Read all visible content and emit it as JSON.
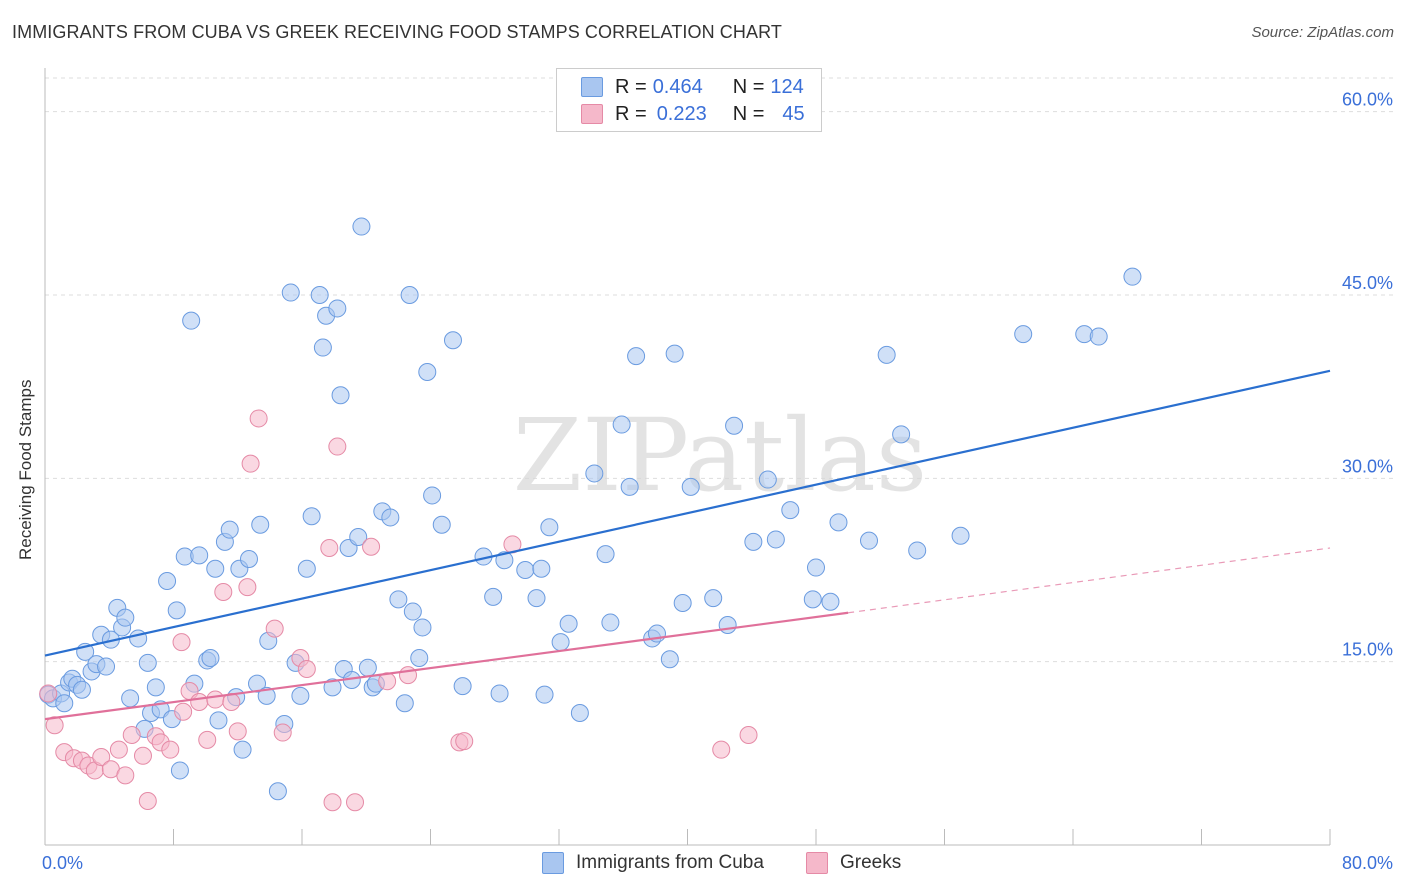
{
  "title": "IMMIGRANTS FROM CUBA VS GREEK RECEIVING FOOD STAMPS CORRELATION CHART",
  "source": "Source: ZipAtlas.com",
  "watermark": "ZIPatlas",
  "legend": {
    "rows": [
      {
        "r_label": "R =",
        "r_value": "0.464",
        "n_label": "N =",
        "n_value": "124",
        "color": "#a9c6f0"
      },
      {
        "r_label": "R =",
        "r_value": "0.223",
        "n_label": "N =",
        "n_value": "45",
        "color": "#f5b8ca"
      }
    ]
  },
  "bottom_legend": [
    {
      "label": "Immigrants from Cuba",
      "color": "#a9c6f0"
    },
    {
      "label": "Greeks",
      "color": "#f5b8ca"
    }
  ],
  "chart_data": {
    "type": "scatter",
    "title": "IMMIGRANTS FROM CUBA VS GREEK RECEIVING FOOD STAMPS CORRELATION CHART",
    "xlabel": "",
    "ylabel": "Receiving Food Stamps",
    "xlim": [
      0,
      80
    ],
    "ylim": [
      0,
      63
    ],
    "x_tick_labels": [
      "0.0%",
      "80.0%"
    ],
    "y_ticks": [
      15,
      30,
      45,
      60
    ],
    "y_tick_labels": [
      "15.0%",
      "30.0%",
      "45.0%",
      "60.0%"
    ],
    "grid": "horizontal dashed",
    "legend_position": "top-center",
    "series": [
      {
        "name": "Immigrants from Cuba",
        "color": "#a9c6f0",
        "stroke": "#6a9be0",
        "trend_color": "#2a6fcf",
        "trend": {
          "x0": 0,
          "y0": 15.5,
          "x1": 80,
          "y1": 38.8
        },
        "points": [
          [
            0.2,
            12.3
          ],
          [
            0.5,
            12
          ],
          [
            1,
            12.4
          ],
          [
            1.2,
            11.6
          ],
          [
            1.5,
            13.3
          ],
          [
            1.7,
            13.6
          ],
          [
            2,
            13.1
          ],
          [
            2.3,
            12.7
          ],
          [
            2.5,
            15.8
          ],
          [
            2.9,
            14.2
          ],
          [
            3.2,
            14.8
          ],
          [
            3.5,
            17.2
          ],
          [
            3.8,
            14.6
          ],
          [
            4.1,
            16.8
          ],
          [
            4.5,
            19.4
          ],
          [
            4.8,
            17.8
          ],
          [
            5,
            18.6
          ],
          [
            5.3,
            12
          ],
          [
            5.8,
            16.9
          ],
          [
            6.2,
            9.5
          ],
          [
            6.4,
            14.9
          ],
          [
            6.6,
            10.8
          ],
          [
            6.9,
            12.9
          ],
          [
            7.2,
            11.1
          ],
          [
            7.6,
            21.6
          ],
          [
            7.9,
            10.3
          ],
          [
            8.2,
            19.2
          ],
          [
            8.4,
            6.1
          ],
          [
            8.7,
            23.6
          ],
          [
            9.1,
            42.9
          ],
          [
            9.3,
            13.2
          ],
          [
            9.6,
            23.7
          ],
          [
            10.1,
            15.1
          ],
          [
            10.3,
            15.3
          ],
          [
            10.6,
            22.6
          ],
          [
            10.8,
            10.2
          ],
          [
            11.2,
            24.8
          ],
          [
            11.5,
            25.8
          ],
          [
            11.9,
            12.1
          ],
          [
            12.1,
            22.6
          ],
          [
            12.3,
            7.8
          ],
          [
            12.7,
            23.4
          ],
          [
            13.2,
            13.2
          ],
          [
            13.4,
            26.2
          ],
          [
            13.8,
            12.2
          ],
          [
            13.9,
            16.7
          ],
          [
            14.5,
            4.4
          ],
          [
            14.9,
            9.9
          ],
          [
            15.3,
            45.2
          ],
          [
            15.6,
            14.9
          ],
          [
            15.9,
            12.2
          ],
          [
            16.3,
            22.6
          ],
          [
            16.6,
            26.9
          ],
          [
            17.1,
            45
          ],
          [
            17.3,
            40.7
          ],
          [
            17.5,
            43.3
          ],
          [
            17.9,
            12.9
          ],
          [
            18.2,
            43.9
          ],
          [
            18.4,
            36.8
          ],
          [
            18.6,
            14.4
          ],
          [
            18.9,
            24.3
          ],
          [
            19.1,
            13.5
          ],
          [
            19.5,
            25.2
          ],
          [
            19.7,
            50.6
          ],
          [
            20.1,
            14.5
          ],
          [
            20.4,
            12.9
          ],
          [
            20.6,
            13.2
          ],
          [
            21,
            27.3
          ],
          [
            21.5,
            26.8
          ],
          [
            22,
            20.1
          ],
          [
            22.4,
            11.6
          ],
          [
            22.7,
            45
          ],
          [
            22.9,
            19.1
          ],
          [
            23.3,
            15.3
          ],
          [
            23.5,
            17.8
          ],
          [
            23.8,
            38.7
          ],
          [
            24.1,
            28.6
          ],
          [
            24.7,
            26.2
          ],
          [
            25.4,
            41.3
          ],
          [
            26,
            13
          ],
          [
            27.3,
            23.6
          ],
          [
            27.9,
            20.3
          ],
          [
            28.3,
            12.4
          ],
          [
            28.6,
            23.3
          ],
          [
            29.9,
            22.5
          ],
          [
            30.6,
            20.2
          ],
          [
            30.9,
            22.6
          ],
          [
            31.1,
            12.3
          ],
          [
            31.4,
            26
          ],
          [
            32.1,
            16.6
          ],
          [
            32.6,
            18.1
          ],
          [
            33.3,
            10.8
          ],
          [
            34.2,
            30.4
          ],
          [
            34.9,
            23.8
          ],
          [
            35.2,
            18.2
          ],
          [
            35.9,
            34.4
          ],
          [
            36.4,
            29.3
          ],
          [
            36.8,
            40
          ],
          [
            37.8,
            16.9
          ],
          [
            38.1,
            17.3
          ],
          [
            38.9,
            15.2
          ],
          [
            39.2,
            40.2
          ],
          [
            39.7,
            19.8
          ],
          [
            40.2,
            29.3
          ],
          [
            41.6,
            20.2
          ],
          [
            42.5,
            18
          ],
          [
            42.9,
            34.3
          ],
          [
            44.1,
            24.8
          ],
          [
            45,
            29.9
          ],
          [
            45.5,
            25
          ],
          [
            46.4,
            27.4
          ],
          [
            47.8,
            20.1
          ],
          [
            48,
            22.7
          ],
          [
            48.9,
            19.9
          ],
          [
            49.4,
            26.4
          ],
          [
            51.3,
            24.9
          ],
          [
            52.4,
            40.1
          ],
          [
            53.3,
            33.6
          ],
          [
            54.3,
            24.1
          ],
          [
            57,
            25.3
          ],
          [
            60.9,
            41.8
          ],
          [
            64.7,
            41.8
          ],
          [
            65.6,
            41.6
          ],
          [
            67.7,
            46.5
          ]
        ]
      },
      {
        "name": "Greeks",
        "color": "#f5b8ca",
        "stroke": "#e58aa6",
        "trend_color": "#e0709a",
        "trend": {
          "x0": 0,
          "y0": 10.3,
          "x1": 50,
          "y1": 19
        },
        "trend_dashed": {
          "x0": 50,
          "y0": 19,
          "x1": 80,
          "y1": 24.3
        },
        "points": [
          [
            0.2,
            12.4
          ],
          [
            0.6,
            9.8
          ],
          [
            1.2,
            7.6
          ],
          [
            1.8,
            7.1
          ],
          [
            2.3,
            6.9
          ],
          [
            2.7,
            6.5
          ],
          [
            3.1,
            6.1
          ],
          [
            3.5,
            7.2
          ],
          [
            4.1,
            6.2
          ],
          [
            4.6,
            7.8
          ],
          [
            5,
            5.7
          ],
          [
            5.4,
            9
          ],
          [
            6.1,
            7.3
          ],
          [
            6.4,
            3.6
          ],
          [
            6.9,
            8.9
          ],
          [
            7.2,
            8.4
          ],
          [
            7.8,
            7.8
          ],
          [
            8.6,
            10.9
          ],
          [
            8.5,
            16.6
          ],
          [
            9,
            12.6
          ],
          [
            9.6,
            11.7
          ],
          [
            10.1,
            8.6
          ],
          [
            10.6,
            11.9
          ],
          [
            11.1,
            20.7
          ],
          [
            11.6,
            11.7
          ],
          [
            12,
            9.3
          ],
          [
            12.6,
            21.1
          ],
          [
            12.8,
            31.2
          ],
          [
            13.3,
            34.9
          ],
          [
            14.3,
            17.7
          ],
          [
            14.8,
            9.2
          ],
          [
            15.9,
            15.3
          ],
          [
            16.3,
            14.4
          ],
          [
            17.7,
            24.3
          ],
          [
            17.9,
            3.5
          ],
          [
            18.2,
            32.6
          ],
          [
            19.3,
            3.5
          ],
          [
            20.3,
            24.4
          ],
          [
            21.3,
            13.4
          ],
          [
            22.6,
            13.9
          ],
          [
            25.8,
            8.4
          ],
          [
            26.1,
            8.5
          ],
          [
            29.1,
            24.6
          ],
          [
            42.1,
            7.8
          ],
          [
            43.8,
            9
          ]
        ]
      }
    ]
  }
}
